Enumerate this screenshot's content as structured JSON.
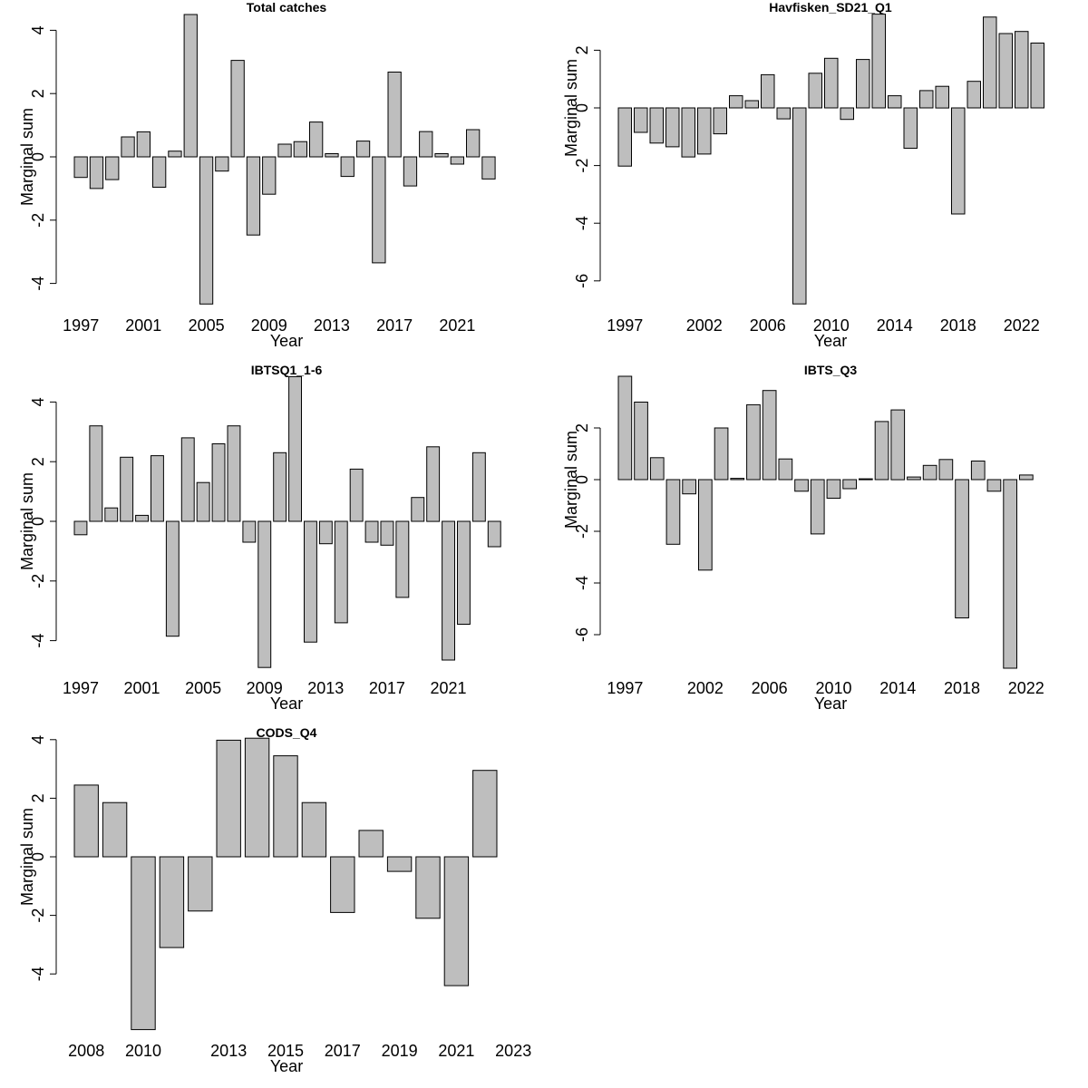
{
  "colors": {
    "bar_fill": "#bebebe",
    "bar_stroke": "#000000",
    "background": "#ffffff"
  },
  "chart_data": [
    {
      "type": "bar",
      "title": "Total catches",
      "xlabel": "Year",
      "ylabel": "Marginal sum",
      "ylim": [
        -4.65,
        4.5
      ],
      "yticks": [
        -4,
        -2,
        0,
        2,
        4
      ],
      "categories": [
        "1997",
        "1998",
        "1999",
        "2000",
        "2001",
        "2002",
        "2003",
        "2004",
        "2005",
        "2006",
        "2007",
        "2008",
        "2009",
        "2010",
        "2011",
        "2012",
        "2013",
        "2014",
        "2015",
        "2016",
        "2017",
        "2018",
        "2019",
        "2020",
        "2021",
        "2022",
        "2023"
      ],
      "tick_labels": [
        "1997",
        "2001",
        "2005",
        "2009",
        "2013",
        "2017",
        "2021"
      ],
      "values": [
        -0.65,
        -1.0,
        -0.72,
        0.63,
        0.79,
        -0.96,
        0.18,
        4.5,
        -4.65,
        -0.45,
        3.05,
        -2.47,
        -1.18,
        0.4,
        0.48,
        1.1,
        0.1,
        -0.62,
        0.5,
        -3.35,
        2.68,
        -0.92,
        0.8,
        0.1,
        -0.23,
        0.86,
        -0.7
      ]
    },
    {
      "type": "bar",
      "title": "Havfisken_SD21_Q1",
      "xlabel": "Year",
      "ylabel": "Marginal sum",
      "ylim": [
        -6.8,
        3.25
      ],
      "yticks": [
        -6,
        -4,
        -2,
        0,
        2
      ],
      "categories": [
        "1997",
        "1998",
        "1999",
        "2000",
        "2001",
        "2002",
        "2003",
        "2004",
        "2005",
        "2006",
        "2007",
        "2008",
        "2009",
        "2010",
        "2011",
        "2012",
        "2013",
        "2014",
        "2015",
        "2016",
        "2017",
        "2018",
        "2019",
        "2020",
        "2021",
        "2022",
        "2023",
        "2024"
      ],
      "tick_labels": [
        "1997",
        "2002",
        "2006",
        "2010",
        "2014",
        "2018",
        "2022"
      ],
      "values": [
        -2.02,
        -0.85,
        -1.22,
        -1.35,
        -1.7,
        -1.6,
        -0.9,
        0.42,
        0.25,
        1.15,
        -0.38,
        -6.8,
        1.2,
        1.72,
        -0.4,
        1.68,
        3.25,
        0.42,
        -1.4,
        0.6,
        0.75,
        -3.68,
        0.92,
        3.15,
        2.58,
        2.65,
        2.25,
        0
      ]
    },
    {
      "type": "bar",
      "title": "IBTSQ1_1-6",
      "xlabel": "Year",
      "ylabel": "Marginal sum",
      "ylim": [
        -4.9,
        4.85
      ],
      "yticks": [
        -4,
        -2,
        0,
        2,
        4
      ],
      "categories": [
        "1997",
        "1998",
        "1999",
        "2000",
        "2001",
        "2002",
        "2003",
        "2004",
        "2005",
        "2006",
        "2007",
        "2008",
        "2009",
        "2010",
        "2011",
        "2012",
        "2013",
        "2014",
        "2015",
        "2016",
        "2017",
        "2018",
        "2019",
        "2020",
        "2021",
        "2022",
        "2023",
        "2024"
      ],
      "tick_labels": [
        "1997",
        "2001",
        "2005",
        "2009",
        "2013",
        "2017",
        "2021"
      ],
      "values": [
        -0.45,
        3.2,
        0.45,
        2.15,
        0.2,
        2.2,
        -3.85,
        2.8,
        1.3,
        2.6,
        3.2,
        -0.7,
        -4.9,
        2.3,
        4.85,
        -4.05,
        -0.75,
        -3.4,
        1.75,
        -0.7,
        -0.8,
        -2.55,
        0.8,
        2.5,
        -4.65,
        -3.45,
        2.3,
        -0.85
      ]
    },
    {
      "type": "bar",
      "title": "IBTS_Q3",
      "xlabel": "Year",
      "ylabel": "Marginal sum",
      "ylim": [
        -7.3,
        4.0
      ],
      "yticks": [
        -6,
        -4,
        -2,
        0,
        2
      ],
      "categories": [
        "1997",
        "1998",
        "1999",
        "2000",
        "2001",
        "2002",
        "2003",
        "2004",
        "2005",
        "2006",
        "2007",
        "2008",
        "2009",
        "2010",
        "2011",
        "2012",
        "2013",
        "2014",
        "2015",
        "2016",
        "2017",
        "2018",
        "2019",
        "2020",
        "2021",
        "2022",
        "2023"
      ],
      "tick_labels": [
        "1997",
        "2002",
        "2006",
        "2010",
        "2014",
        "2018",
        "2022"
      ],
      "values": [
        4.0,
        3.0,
        0.85,
        -2.5,
        -0.55,
        -3.5,
        2.0,
        0.05,
        2.9,
        3.45,
        0.8,
        -0.45,
        -2.1,
        -0.72,
        -0.35,
        0.03,
        2.25,
        2.7,
        0.1,
        0.55,
        0.78,
        -5.35,
        0.72,
        -0.45,
        -7.3,
        0.18,
        0
      ]
    },
    {
      "type": "bar",
      "title": "CODS_Q4",
      "xlabel": "Year",
      "ylabel": "Marginal sum",
      "ylim": [
        -5.9,
        4.05
      ],
      "yticks": [
        -4,
        -2,
        0,
        2,
        4
      ],
      "categories": [
        "2008",
        "2009",
        "2010",
        "2011",
        "2012",
        "2013",
        "2014",
        "2015",
        "2016",
        "2017",
        "2018",
        "2019",
        "2020",
        "2021",
        "2022",
        "2023"
      ],
      "tick_labels": [
        "2008",
        "2010",
        "2013",
        "2015",
        "2017",
        "2019",
        "2021",
        "2023"
      ],
      "values": [
        2.45,
        1.85,
        -5.9,
        -3.1,
        -1.85,
        3.98,
        4.05,
        3.45,
        1.85,
        -1.9,
        0.9,
        -0.5,
        -2.1,
        -4.4,
        2.95,
        0
      ]
    }
  ]
}
